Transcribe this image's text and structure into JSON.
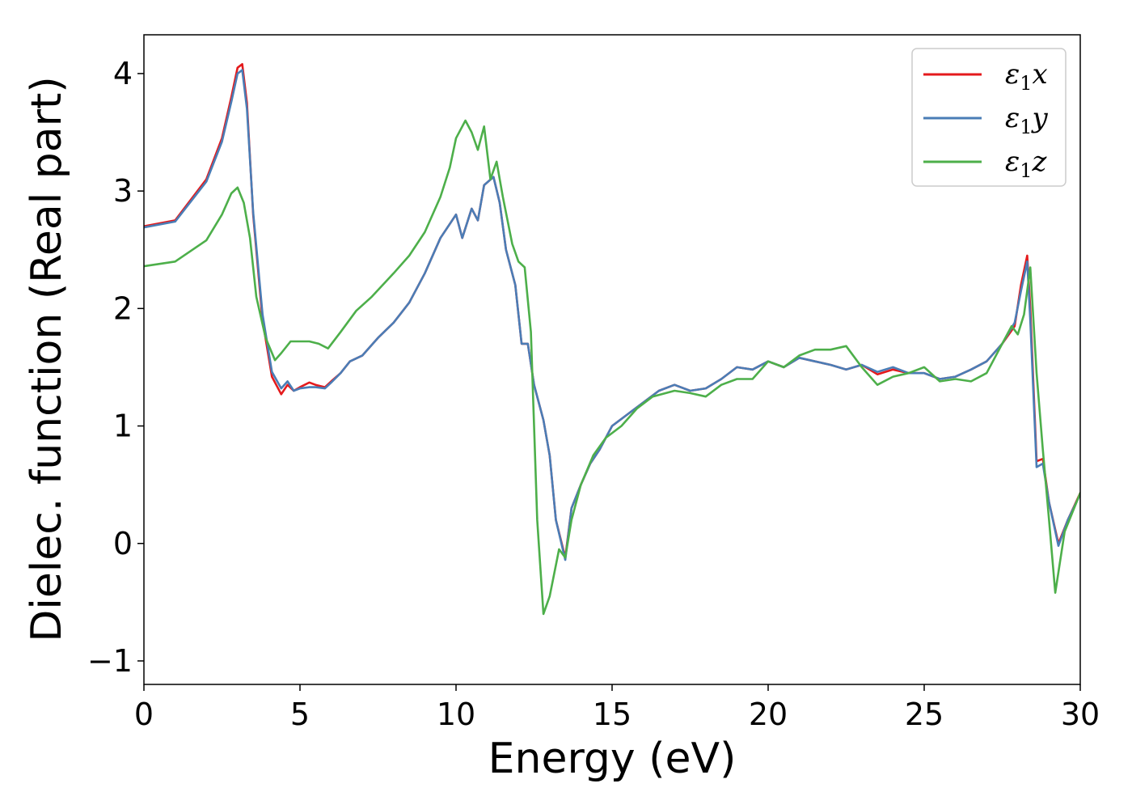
{
  "chart_data": {
    "type": "line",
    "title": "",
    "xlabel": "Energy (eV)",
    "ylabel": "Dielec. function (Real part)",
    "xlim": [
      0,
      30
    ],
    "ylim": [
      -1.2,
      4.33
    ],
    "xticks": [
      0,
      5,
      10,
      15,
      20,
      25,
      30
    ],
    "yticks": [
      -1,
      0,
      1,
      2,
      3,
      4
    ],
    "xtick_labels": [
      "0",
      "5",
      "10",
      "15",
      "20",
      "25",
      "30"
    ],
    "ytick_labels": [
      "−1",
      "0",
      "1",
      "2",
      "3",
      "4"
    ],
    "grid": false,
    "legend": "top-right",
    "series": [
      {
        "name": "ε₁x",
        "legend_base": "ε",
        "legend_sub": "1",
        "legend_var": "x",
        "color": "#e41a1c",
        "x": [
          0,
          1,
          2,
          2.5,
          2.8,
          3.0,
          3.15,
          3.3,
          3.5,
          3.8,
          4.1,
          4.4,
          4.6,
          4.8,
          5.0,
          5.3,
          5.5,
          5.8,
          6.0,
          6.3,
          6.6,
          7.0,
          7.5,
          8.0,
          8.5,
          9.0,
          9.5,
          9.8,
          10.0,
          10.2,
          10.5,
          10.7,
          10.9,
          11.2,
          11.4,
          11.6,
          11.9,
          12.1,
          12.3,
          12.5,
          12.8,
          13.0,
          13.2,
          13.5,
          13.7,
          14.0,
          14.3,
          14.6,
          15.0,
          15.5,
          16.0,
          16.5,
          17.0,
          17.5,
          18.0,
          18.5,
          19.0,
          19.5,
          20.0,
          20.5,
          21.0,
          21.5,
          22.0,
          22.5,
          23.0,
          23.5,
          24.0,
          24.5,
          25.0,
          25.5,
          26.0,
          26.5,
          27.0,
          27.5,
          27.9,
          28.1,
          28.3,
          28.4,
          28.6,
          28.8,
          29.0,
          29.3,
          29.6,
          30.0
        ],
        "y": [
          2.7,
          2.75,
          3.1,
          3.45,
          3.8,
          4.05,
          4.08,
          3.75,
          2.8,
          1.9,
          1.42,
          1.27,
          1.35,
          1.3,
          1.33,
          1.37,
          1.35,
          1.33,
          1.38,
          1.45,
          1.55,
          1.6,
          1.75,
          1.88,
          2.05,
          2.3,
          2.6,
          2.72,
          2.8,
          2.6,
          2.85,
          2.75,
          3.05,
          3.12,
          2.9,
          2.5,
          2.2,
          1.7,
          1.7,
          1.35,
          1.05,
          0.75,
          0.2,
          -0.12,
          0.3,
          0.5,
          0.68,
          0.8,
          1.0,
          1.1,
          1.2,
          1.3,
          1.35,
          1.3,
          1.32,
          1.4,
          1.5,
          1.48,
          1.55,
          1.5,
          1.58,
          1.55,
          1.52,
          1.48,
          1.52,
          1.44,
          1.48,
          1.45,
          1.45,
          1.4,
          1.42,
          1.48,
          1.55,
          1.7,
          1.85,
          2.2,
          2.45,
          2.0,
          0.7,
          0.72,
          0.35,
          0.0,
          0.2,
          0.43
        ]
      },
      {
        "name": "ε₁y",
        "legend_base": "ε",
        "legend_sub": "1",
        "legend_var": "y",
        "color": "#4a7db6",
        "x": [
          0,
          1,
          2,
          2.5,
          2.8,
          3.0,
          3.15,
          3.3,
          3.5,
          3.8,
          4.1,
          4.4,
          4.6,
          4.8,
          5.0,
          5.3,
          5.5,
          5.8,
          6.0,
          6.3,
          6.6,
          7.0,
          7.5,
          8.0,
          8.5,
          9.0,
          9.5,
          9.8,
          10.0,
          10.2,
          10.5,
          10.7,
          10.9,
          11.2,
          11.4,
          11.6,
          11.9,
          12.1,
          12.3,
          12.5,
          12.8,
          13.0,
          13.2,
          13.5,
          13.7,
          14.0,
          14.3,
          14.6,
          15.0,
          15.5,
          16.0,
          16.5,
          17.0,
          17.5,
          18.0,
          18.5,
          19.0,
          19.5,
          20.0,
          20.5,
          21.0,
          21.5,
          22.0,
          22.5,
          23.0,
          23.5,
          24.0,
          24.5,
          25.0,
          25.5,
          26.0,
          26.5,
          27.0,
          27.5,
          27.9,
          28.1,
          28.3,
          28.4,
          28.6,
          28.8,
          29.0,
          29.3,
          29.6,
          30.0
        ],
        "y": [
          2.69,
          2.74,
          3.08,
          3.42,
          3.76,
          4.0,
          4.03,
          3.7,
          2.82,
          1.95,
          1.46,
          1.32,
          1.38,
          1.3,
          1.32,
          1.33,
          1.33,
          1.32,
          1.37,
          1.45,
          1.55,
          1.6,
          1.75,
          1.88,
          2.05,
          2.3,
          2.6,
          2.72,
          2.8,
          2.6,
          2.85,
          2.75,
          3.05,
          3.12,
          2.9,
          2.5,
          2.2,
          1.7,
          1.7,
          1.35,
          1.05,
          0.75,
          0.2,
          -0.14,
          0.3,
          0.5,
          0.68,
          0.8,
          1.0,
          1.1,
          1.2,
          1.3,
          1.35,
          1.3,
          1.32,
          1.4,
          1.5,
          1.48,
          1.55,
          1.5,
          1.58,
          1.55,
          1.52,
          1.48,
          1.52,
          1.46,
          1.5,
          1.45,
          1.45,
          1.4,
          1.42,
          1.48,
          1.55,
          1.7,
          1.88,
          2.15,
          2.4,
          1.9,
          0.65,
          0.68,
          0.35,
          -0.02,
          0.2,
          0.42
        ]
      },
      {
        "name": "ε₁z",
        "legend_base": "ε",
        "legend_sub": "1",
        "legend_var": "z",
        "color": "#4daf4a",
        "x": [
          0,
          1,
          2,
          2.5,
          2.8,
          3.0,
          3.2,
          3.4,
          3.6,
          3.9,
          4.2,
          4.4,
          4.7,
          5.0,
          5.3,
          5.6,
          5.9,
          6.3,
          6.8,
          7.3,
          8.0,
          8.5,
          9.0,
          9.5,
          9.8,
          10.0,
          10.3,
          10.5,
          10.7,
          10.9,
          11.1,
          11.3,
          11.5,
          11.8,
          12.0,
          12.2,
          12.4,
          12.6,
          12.8,
          13.0,
          13.3,
          13.5,
          13.7,
          14.0,
          14.4,
          14.8,
          15.3,
          15.8,
          16.3,
          17.0,
          17.5,
          18.0,
          18.5,
          19.0,
          19.5,
          20.0,
          20.5,
          21.0,
          21.5,
          22.0,
          22.5,
          23.0,
          23.5,
          24.0,
          24.5,
          25.0,
          25.5,
          26.0,
          26.5,
          27.0,
          27.5,
          27.8,
          28.0,
          28.2,
          28.4,
          28.6,
          28.8,
          29.0,
          29.2,
          29.5,
          30.0
        ],
        "y": [
          2.36,
          2.4,
          2.58,
          2.8,
          2.98,
          3.03,
          2.9,
          2.6,
          2.1,
          1.75,
          1.56,
          1.62,
          1.72,
          1.72,
          1.72,
          1.7,
          1.66,
          1.8,
          1.98,
          2.1,
          2.3,
          2.45,
          2.65,
          2.95,
          3.2,
          3.45,
          3.6,
          3.5,
          3.35,
          3.55,
          3.1,
          3.25,
          2.95,
          2.55,
          2.4,
          2.35,
          1.8,
          0.2,
          -0.6,
          -0.45,
          -0.05,
          -0.12,
          0.2,
          0.5,
          0.75,
          0.9,
          1.0,
          1.15,
          1.25,
          1.3,
          1.28,
          1.25,
          1.35,
          1.4,
          1.4,
          1.55,
          1.5,
          1.6,
          1.65,
          1.65,
          1.68,
          1.5,
          1.35,
          1.42,
          1.45,
          1.5,
          1.38,
          1.4,
          1.38,
          1.45,
          1.7,
          1.85,
          1.78,
          1.95,
          2.35,
          1.45,
          0.8,
          0.2,
          -0.42,
          0.1,
          0.43
        ]
      }
    ]
  }
}
